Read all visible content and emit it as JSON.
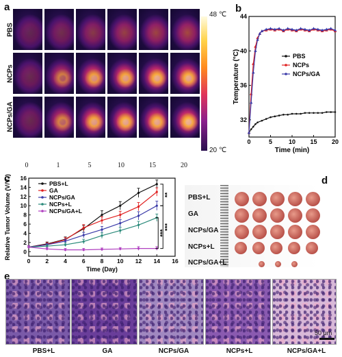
{
  "panels": {
    "a": {
      "letter": "a",
      "rows": [
        "PBS",
        "NCPs",
        "NCPs/GA"
      ],
      "times": [
        "0",
        "1",
        "5",
        "10",
        "15",
        "20"
      ],
      "colorbar": {
        "max_label": "48 ℃",
        "min_label": "20 ℃"
      },
      "intensity": [
        [
          0.05,
          0.15,
          0.3,
          0.4,
          0.45,
          0.5
        ],
        [
          0.1,
          0.55,
          0.8,
          0.85,
          0.9,
          0.9
        ],
        [
          0.1,
          0.6,
          0.85,
          0.9,
          0.9,
          0.95
        ]
      ]
    },
    "b": {
      "letter": "b"
    },
    "c": {
      "letter": "c"
    },
    "d": {
      "letter": "d",
      "groups": [
        "PBS+L",
        "GA",
        "NCPs/GA",
        "NCPs+L",
        "NCPs/GA+L"
      ],
      "counts": [
        5,
        5,
        5,
        5,
        3
      ]
    },
    "e": {
      "letter": "e",
      "labels": [
        "PBS+L",
        "GA",
        "NCPs/GA",
        "NCPs+L",
        "NCPs/GA+L"
      ],
      "scalebar": "50 μm",
      "colors": [
        "#7a5aa8",
        "#6a3e9a",
        "#a088c0",
        "#8a5ab0",
        "#d8b8d8"
      ]
    }
  },
  "chart_data": [
    {
      "panel": "b",
      "type": "line",
      "xlabel": "Time (min)",
      "ylabel": "Temperature (°C)",
      "xlim": [
        0,
        20
      ],
      "ylim": [
        30,
        44
      ],
      "xticks": [
        0,
        5,
        10,
        15,
        20
      ],
      "yticks": [
        32,
        36,
        40,
        44
      ],
      "legend": "right-middle",
      "series": [
        {
          "name": "PBS",
          "color": "#111111",
          "x": [
            0,
            0.5,
            1,
            1.5,
            2,
            3,
            4,
            5,
            6,
            7,
            8,
            9,
            10,
            11,
            12,
            13,
            14,
            15,
            16,
            17,
            18,
            19,
            20
          ],
          "y": [
            30.5,
            30.9,
            31.2,
            31.5,
            31.7,
            31.9,
            32.1,
            32.3,
            32.4,
            32.5,
            32.6,
            32.6,
            32.7,
            32.7,
            32.7,
            32.8,
            32.8,
            32.8,
            32.8,
            32.8,
            32.9,
            32.9,
            32.9
          ]
        },
        {
          "name": "NCPs",
          "color": "#e02020",
          "x": [
            0,
            0.5,
            1,
            1.5,
            2,
            2.5,
            3,
            4,
            5,
            6,
            7,
            8,
            9,
            10,
            11,
            12,
            13,
            14,
            15,
            16,
            17,
            18,
            19,
            20
          ],
          "y": [
            30.5,
            35.0,
            38.5,
            40.5,
            41.5,
            42.0,
            42.3,
            42.4,
            42.5,
            42.4,
            42.5,
            42.3,
            42.5,
            42.4,
            42.3,
            42.5,
            42.4,
            42.3,
            42.5,
            42.4,
            42.3,
            42.4,
            42.5,
            42.3
          ]
        },
        {
          "name": "NCPs/GA",
          "color": "#3a3aa8",
          "x": [
            0,
            0.5,
            1,
            1.5,
            2,
            2.5,
            3,
            4,
            5,
            6,
            7,
            8,
            9,
            10,
            11,
            12,
            13,
            14,
            15,
            16,
            17,
            18,
            19,
            20
          ],
          "y": [
            30.5,
            34.0,
            37.5,
            40.0,
            41.3,
            42.0,
            42.3,
            42.5,
            42.6,
            42.5,
            42.6,
            42.4,
            42.6,
            42.5,
            42.4,
            42.6,
            42.5,
            42.4,
            42.6,
            42.5,
            42.4,
            42.5,
            42.6,
            42.4
          ]
        }
      ]
    },
    {
      "panel": "c",
      "type": "line",
      "xlabel": "Time (Day)",
      "ylabel": "Relative Tumor Volume (V/V₀)",
      "xlim": [
        0,
        16
      ],
      "ylim": [
        -1,
        16
      ],
      "xticks": [
        0,
        2,
        4,
        6,
        8,
        10,
        12,
        14,
        16
      ],
      "yticks": [
        0,
        2,
        4,
        6,
        8,
        10,
        12,
        14,
        16
      ],
      "legend": "top-left",
      "significance": [
        "**",
        "***",
        "***"
      ],
      "series": [
        {
          "name": "PBS+L",
          "color": "#111111",
          "x": [
            0,
            2,
            4,
            6,
            8,
            10,
            12,
            14
          ],
          "y": [
            1.0,
            1.7,
            2.7,
            5.0,
            8.0,
            10.0,
            12.8,
            14.7
          ],
          "err": [
            0.3,
            0.4,
            0.5,
            0.7,
            0.9,
            0.9,
            1.0,
            0.9
          ]
        },
        {
          "name": "GA",
          "color": "#e02020",
          "x": [
            0,
            2,
            4,
            6,
            8,
            10,
            12,
            14
          ],
          "y": [
            1.0,
            1.6,
            2.6,
            5.2,
            6.8,
            8.0,
            9.8,
            13.0
          ],
          "err": [
            0.3,
            0.4,
            0.5,
            0.7,
            0.8,
            0.8,
            0.9,
            0.9
          ]
        },
        {
          "name": "NCPs/GA",
          "color": "#3a3aa8",
          "x": [
            0,
            2,
            4,
            6,
            8,
            10,
            12,
            14
          ],
          "y": [
            1.0,
            1.5,
            2.3,
            3.6,
            4.8,
            6.2,
            7.8,
            10.0
          ],
          "err": [
            0.3,
            0.3,
            0.4,
            0.6,
            0.7,
            0.8,
            0.9,
            1.0
          ]
        },
        {
          "name": "NCPs+L",
          "color": "#2a8a7a",
          "x": [
            0,
            2,
            4,
            6,
            8,
            10,
            12,
            14
          ],
          "y": [
            1.0,
            1.2,
            1.5,
            2.2,
            3.5,
            4.6,
            5.8,
            7.4
          ],
          "err": [
            0.3,
            0.3,
            0.4,
            0.5,
            0.6,
            0.7,
            0.8,
            0.8
          ]
        },
        {
          "name": "NCPs/GA+L",
          "color": "#b040c0",
          "x": [
            0,
            2,
            4,
            6,
            8,
            10,
            12,
            14
          ],
          "y": [
            1.0,
            0.6,
            0.4,
            0.4,
            0.5,
            0.6,
            0.7,
            0.7
          ],
          "err": [
            0.3,
            0.3,
            0.3,
            0.3,
            0.3,
            0.3,
            0.4,
            0.4
          ]
        }
      ]
    }
  ]
}
